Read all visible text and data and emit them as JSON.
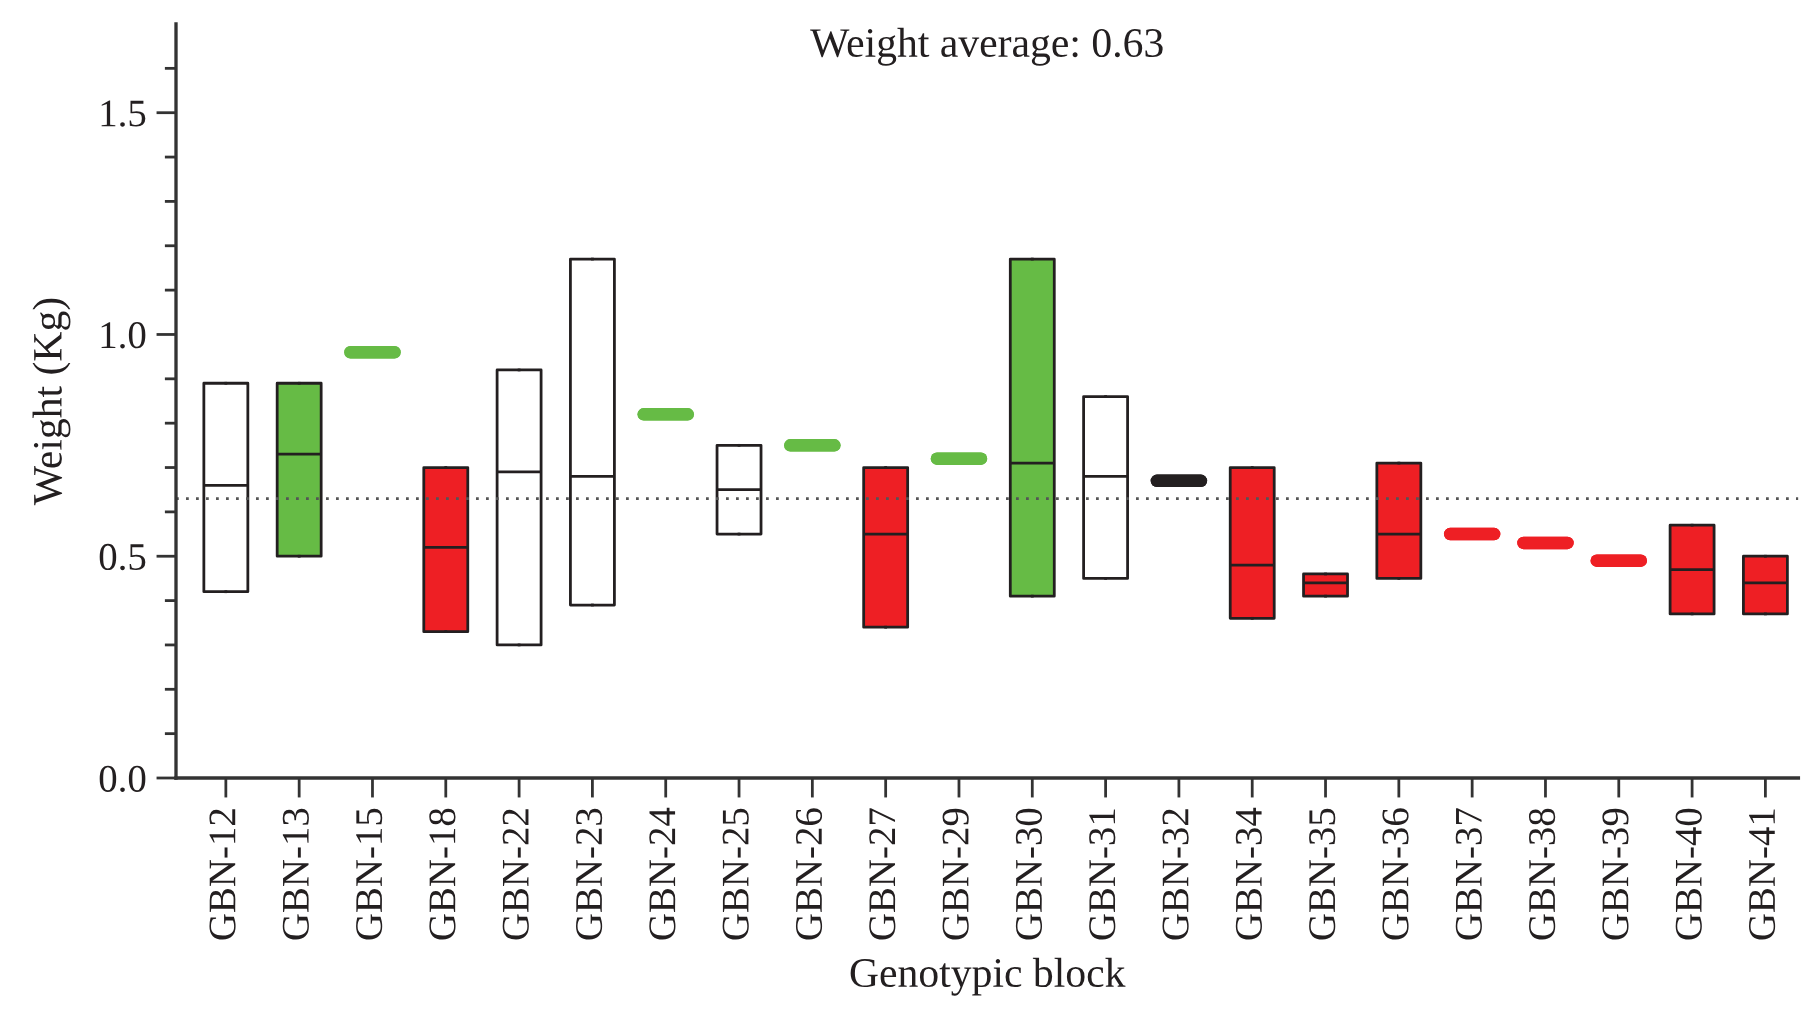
{
  "chart_data": {
    "type": "box",
    "xlabel": "Genotypic block",
    "ylabel": "Weight (Kg)",
    "annotations": [
      "Weight average: 0.63"
    ],
    "categories": [
      "GBN-12",
      "GBN-13",
      "GBN-15",
      "GBN-18",
      "GBN-22",
      "GBN-23",
      "GBN-24",
      "GBN-25",
      "GBN-26",
      "GBN-27",
      "GBN-29",
      "GBN-30",
      "GBN-31",
      "GBN-32",
      "GBN-34",
      "GBN-35",
      "GBN-36",
      "GBN-37",
      "GBN-38",
      "GBN-39",
      "GBN-40",
      "GBN-41"
    ],
    "boxes": [
      {
        "low": 0.42,
        "q1": 0.42,
        "median": 0.66,
        "q3": 0.89,
        "high": 0.89
      },
      {
        "low": 0.5,
        "q1": 0.5,
        "median": 0.73,
        "q3": 0.89,
        "high": 0.89
      },
      {
        "low": 0.96,
        "q1": 0.96,
        "median": 0.96,
        "q3": 0.96,
        "high": 0.96
      },
      {
        "low": 0.33,
        "q1": 0.33,
        "median": 0.52,
        "q3": 0.7,
        "high": 0.7
      },
      {
        "low": 0.3,
        "q1": 0.3,
        "median": 0.69,
        "q3": 0.92,
        "high": 0.92
      },
      {
        "low": 0.39,
        "q1": 0.39,
        "median": 0.68,
        "q3": 1.17,
        "high": 1.17
      },
      {
        "low": 0.82,
        "q1": 0.82,
        "median": 0.82,
        "q3": 0.82,
        "high": 0.82
      },
      {
        "low": 0.55,
        "q1": 0.55,
        "median": 0.65,
        "q3": 0.75,
        "high": 0.75
      },
      {
        "low": 0.75,
        "q1": 0.75,
        "median": 0.75,
        "q3": 0.75,
        "high": 0.75
      },
      {
        "low": 0.34,
        "q1": 0.34,
        "median": 0.55,
        "q3": 0.7,
        "high": 0.7
      },
      {
        "low": 0.72,
        "q1": 0.72,
        "median": 0.72,
        "q3": 0.72,
        "high": 0.72
      },
      {
        "low": 0.41,
        "q1": 0.41,
        "median": 0.71,
        "q3": 1.17,
        "high": 1.17
      },
      {
        "low": 0.45,
        "q1": 0.45,
        "median": 0.68,
        "q3": 0.86,
        "high": 0.86
      },
      {
        "low": 0.67,
        "q1": 0.67,
        "median": 0.67,
        "q3": 0.67,
        "high": 0.67
      },
      {
        "low": 0.36,
        "q1": 0.36,
        "median": 0.48,
        "q3": 0.7,
        "high": 0.7
      },
      {
        "low": 0.41,
        "q1": 0.41,
        "median": 0.44,
        "q3": 0.46,
        "high": 0.46
      },
      {
        "low": 0.45,
        "q1": 0.45,
        "median": 0.55,
        "q3": 0.71,
        "high": 0.71
      },
      {
        "low": 0.55,
        "q1": 0.55,
        "median": 0.55,
        "q3": 0.55,
        "high": 0.55
      },
      {
        "low": 0.53,
        "q1": 0.53,
        "median": 0.53,
        "q3": 0.53,
        "high": 0.53
      },
      {
        "low": 0.49,
        "q1": 0.49,
        "median": 0.49,
        "q3": 0.49,
        "high": 0.49
      },
      {
        "low": 0.37,
        "q1": 0.37,
        "median": 0.47,
        "q3": 0.57,
        "high": 0.57
      },
      {
        "low": 0.37,
        "q1": 0.37,
        "median": 0.44,
        "q3": 0.5,
        "high": 0.5
      }
    ],
    "colors": [
      "#ffffff",
      "#66bb45",
      "#66bb45",
      "#ee1f24",
      "#ffffff",
      "#ffffff",
      "#66bb45",
      "#ffffff",
      "#66bb45",
      "#ee1f24",
      "#66bb45",
      "#66bb45",
      "#ffffff",
      "#231f20",
      "#ee1f24",
      "#ee1f24",
      "#ee1f24",
      "#ee1f24",
      "#ee1f24",
      "#ee1f24",
      "#ee1f24",
      "#ee1f24"
    ],
    "ylim": [
      0,
      1.7
    ],
    "yticks": [
      {
        "value": 0,
        "label": "0.0"
      },
      {
        "value": 0.1,
        "label": null
      },
      {
        "value": 0.2,
        "label": null
      },
      {
        "value": 0.3,
        "label": null
      },
      {
        "value": 0.4,
        "label": null
      },
      0.5,
      {
        "value": 0.6,
        "label": null
      },
      {
        "value": 0.7,
        "label": null
      },
      {
        "value": 0.8,
        "label": null
      },
      {
        "value": 0.9,
        "label": null
      },
      {
        "value": 1.0,
        "label": "1.0"
      },
      {
        "value": 1.1,
        "label": null
      },
      {
        "value": 1.2,
        "label": null
      },
      {
        "value": 1.3,
        "label": null
      },
      {
        "value": 1.4,
        "label": null
      },
      1.5,
      {
        "value": 1.6,
        "label": null
      }
    ],
    "ref_lines": [
      {
        "axis": "y",
        "value": 0.63,
        "color": "#555555",
        "line_style": "dotted"
      }
    ]
  }
}
